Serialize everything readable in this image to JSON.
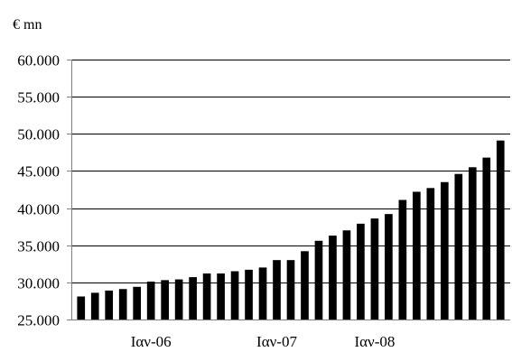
{
  "chart_data": {
    "type": "bar",
    "title": "",
    "ylabel": "€ mn",
    "xlabel": "",
    "ylim": [
      25000,
      60000
    ],
    "yticks": [
      25000,
      30000,
      35000,
      40000,
      45000,
      50000,
      55000,
      60000
    ],
    "ytick_labels": [
      "25.000",
      "30.000",
      "35.000",
      "40.000",
      "45.000",
      "50.000",
      "55.000",
      "60.000"
    ],
    "x_labels": [
      {
        "index": 5,
        "text": "Ιαν-06"
      },
      {
        "index": 14,
        "text": "Ιαν-07"
      },
      {
        "index": 21,
        "text": "Ιαν-08"
      }
    ],
    "values": [
      28100,
      28600,
      28900,
      29100,
      29400,
      30100,
      30300,
      30400,
      30700,
      31200,
      31200,
      31500,
      31700,
      32000,
      33000,
      33000,
      34200,
      35600,
      36300,
      37000,
      37900,
      38600,
      39200,
      41100,
      42200,
      42700,
      43500,
      44600,
      45500,
      46800,
      49100
    ],
    "grid": true,
    "bar_color": "#000000",
    "grid_color": "#000000",
    "axis_color": "#808080"
  }
}
